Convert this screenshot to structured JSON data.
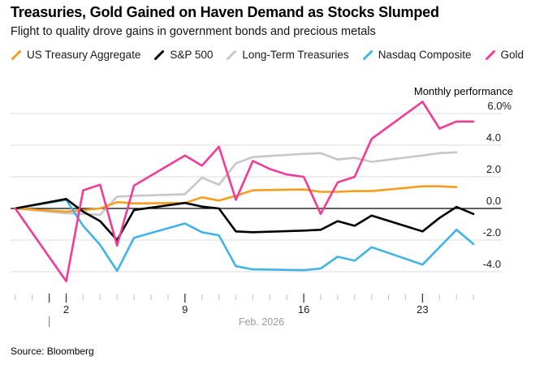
{
  "chart_data": {
    "type": "line",
    "title": "Treasuries, Gold Gained on Haven Demand as Stocks Slumped",
    "subtitle": "Flight to quality drove gains in government bonds and precious metals",
    "ylabel": "Monthly performance",
    "ylim": [
      -5.2,
      7.0
    ],
    "grid": "horizontal",
    "legend_position": "top",
    "y_ticks": [
      {
        "label": "6.0%",
        "value": 6
      },
      {
        "label": "4.0",
        "value": 4
      },
      {
        "label": "2.0",
        "value": 2
      },
      {
        "label": "0.0",
        "value": 0
      },
      {
        "label": "-2.0",
        "value": -2
      },
      {
        "label": "-4.0",
        "value": -4
      }
    ],
    "x_axis": {
      "unit": "day of February 2026 (negative = late January)",
      "day_start": -1,
      "day_end": 26,
      "labeled_ticks": [
        {
          "day": 2,
          "label": "2"
        },
        {
          "day": 9,
          "label": "9"
        },
        {
          "day": 16,
          "label": "16"
        },
        {
          "day": 23,
          "label": "23"
        }
      ],
      "tall_tick_days": [
        1,
        2,
        9,
        16,
        23
      ],
      "month_boundary_day": 1,
      "month_label": "Feb. 2026"
    },
    "series": [
      {
        "name": "US Treasury Aggregate",
        "color": "#f79c1c",
        "z": 2,
        "points": [
          [
            -1,
            0
          ],
          [
            2,
            -0.2
          ],
          [
            3,
            -0.1
          ],
          [
            4,
            0
          ],
          [
            5,
            0.4
          ],
          [
            6,
            0.32
          ],
          [
            9,
            0.35
          ],
          [
            10,
            0.7
          ],
          [
            11,
            0.5
          ],
          [
            12,
            0.8
          ],
          [
            13,
            1.15
          ],
          [
            16,
            1.2
          ],
          [
            17,
            1.05
          ],
          [
            18,
            1.05
          ],
          [
            19,
            1.1
          ],
          [
            20,
            1.1
          ],
          [
            23,
            1.4
          ],
          [
            24,
            1.4
          ],
          [
            25,
            1.35
          ]
        ]
      },
      {
        "name": "S&P 500",
        "color": "#000000",
        "z": 4,
        "points": [
          [
            -1,
            0
          ],
          [
            2,
            0.6
          ],
          [
            3,
            -0.2
          ],
          [
            4,
            -0.8
          ],
          [
            5,
            -2.0
          ],
          [
            6,
            -0.1
          ],
          [
            9,
            0.35
          ],
          [
            10,
            0.12
          ],
          [
            11,
            0.0
          ],
          [
            12,
            -1.45
          ],
          [
            13,
            -1.5
          ],
          [
            16,
            -1.4
          ],
          [
            17,
            -1.35
          ],
          [
            18,
            -0.8
          ],
          [
            19,
            -1.1
          ],
          [
            20,
            -0.45
          ],
          [
            23,
            -1.45
          ],
          [
            24,
            -0.6
          ],
          [
            25,
            0.1
          ],
          [
            26,
            -0.35
          ]
        ]
      },
      {
        "name": "Long-Term Treasuries",
        "color": "#c7c7c7",
        "z": 1,
        "points": [
          [
            -1,
            0
          ],
          [
            2,
            -0.3
          ],
          [
            3,
            -0.35
          ],
          [
            4,
            -0.4
          ],
          [
            5,
            0.75
          ],
          [
            6,
            0.8
          ],
          [
            9,
            0.9
          ],
          [
            10,
            1.95
          ],
          [
            11,
            1.5
          ],
          [
            12,
            2.85
          ],
          [
            13,
            3.25
          ],
          [
            16,
            3.45
          ],
          [
            17,
            3.5
          ],
          [
            18,
            3.1
          ],
          [
            19,
            3.2
          ],
          [
            20,
            2.95
          ],
          [
            23,
            3.35
          ],
          [
            24,
            3.5
          ],
          [
            25,
            3.55
          ]
        ]
      },
      {
        "name": "Nasdaq Composite",
        "color": "#40b4e5",
        "z": 3,
        "points": [
          [
            -1,
            0
          ],
          [
            2,
            0.55
          ],
          [
            3,
            -1.1
          ],
          [
            4,
            -2.3
          ],
          [
            5,
            -3.95
          ],
          [
            6,
            -1.85
          ],
          [
            9,
            -0.95
          ],
          [
            10,
            -1.5
          ],
          [
            11,
            -1.7
          ],
          [
            12,
            -3.65
          ],
          [
            13,
            -3.85
          ],
          [
            16,
            -3.9
          ],
          [
            17,
            -3.8
          ],
          [
            18,
            -3.05
          ],
          [
            19,
            -3.3
          ],
          [
            20,
            -2.45
          ],
          [
            23,
            -3.55
          ],
          [
            24,
            -2.45
          ],
          [
            25,
            -1.35
          ],
          [
            26,
            -2.25
          ]
        ]
      },
      {
        "name": "Gold",
        "color": "#f23a99",
        "z": 5,
        "points": [
          [
            -1,
            0
          ],
          [
            2,
            -4.6
          ],
          [
            3,
            1.15
          ],
          [
            4,
            1.5
          ],
          [
            5,
            -2.35
          ],
          [
            6,
            1.45
          ],
          [
            9,
            3.35
          ],
          [
            10,
            2.7
          ],
          [
            11,
            3.9
          ],
          [
            12,
            0.55
          ],
          [
            13,
            3.0
          ],
          [
            14,
            2.5
          ],
          [
            15,
            2.15
          ],
          [
            16,
            2.0
          ],
          [
            17,
            -0.35
          ],
          [
            18,
            1.65
          ],
          [
            19,
            2.0
          ],
          [
            20,
            4.4
          ],
          [
            23,
            6.75
          ],
          [
            24,
            5.05
          ],
          [
            25,
            5.5
          ],
          [
            26,
            5.5
          ]
        ]
      }
    ]
  },
  "footer": {
    "source_label": "Source: Bloomberg"
  }
}
